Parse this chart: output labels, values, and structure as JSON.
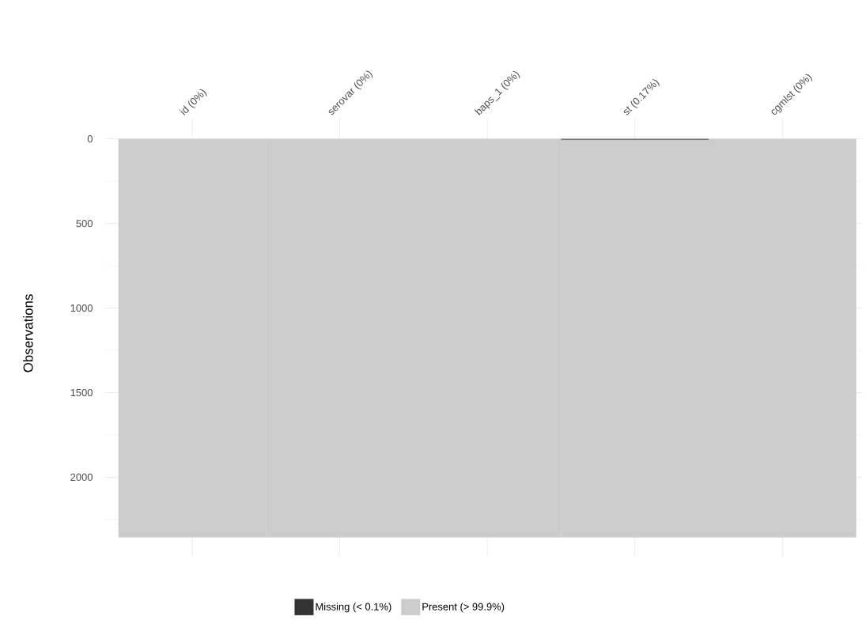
{
  "chart_data": {
    "type": "bar",
    "stacked": true,
    "categories": [
      "id (0%)",
      "serovar (0%)",
      "baps_1 (0%)",
      "st (0.17%)",
      "cgmlst (0%)"
    ],
    "series": [
      {
        "name": "Missing (< 0.1%)",
        "color": "#333333",
        "values": [
          0,
          0,
          0,
          4,
          0
        ]
      },
      {
        "name": "Present (> 99.9%)",
        "color": "#cccccc",
        "values": [
          2355,
          2355,
          2355,
          2351,
          2355
        ]
      }
    ],
    "ylabel": "Observations",
    "ylim": [
      2470,
      -120
    ],
    "yticks": [
      0,
      500,
      1000,
      1500,
      2000
    ],
    "grid": true,
    "legend": "bottom"
  }
}
